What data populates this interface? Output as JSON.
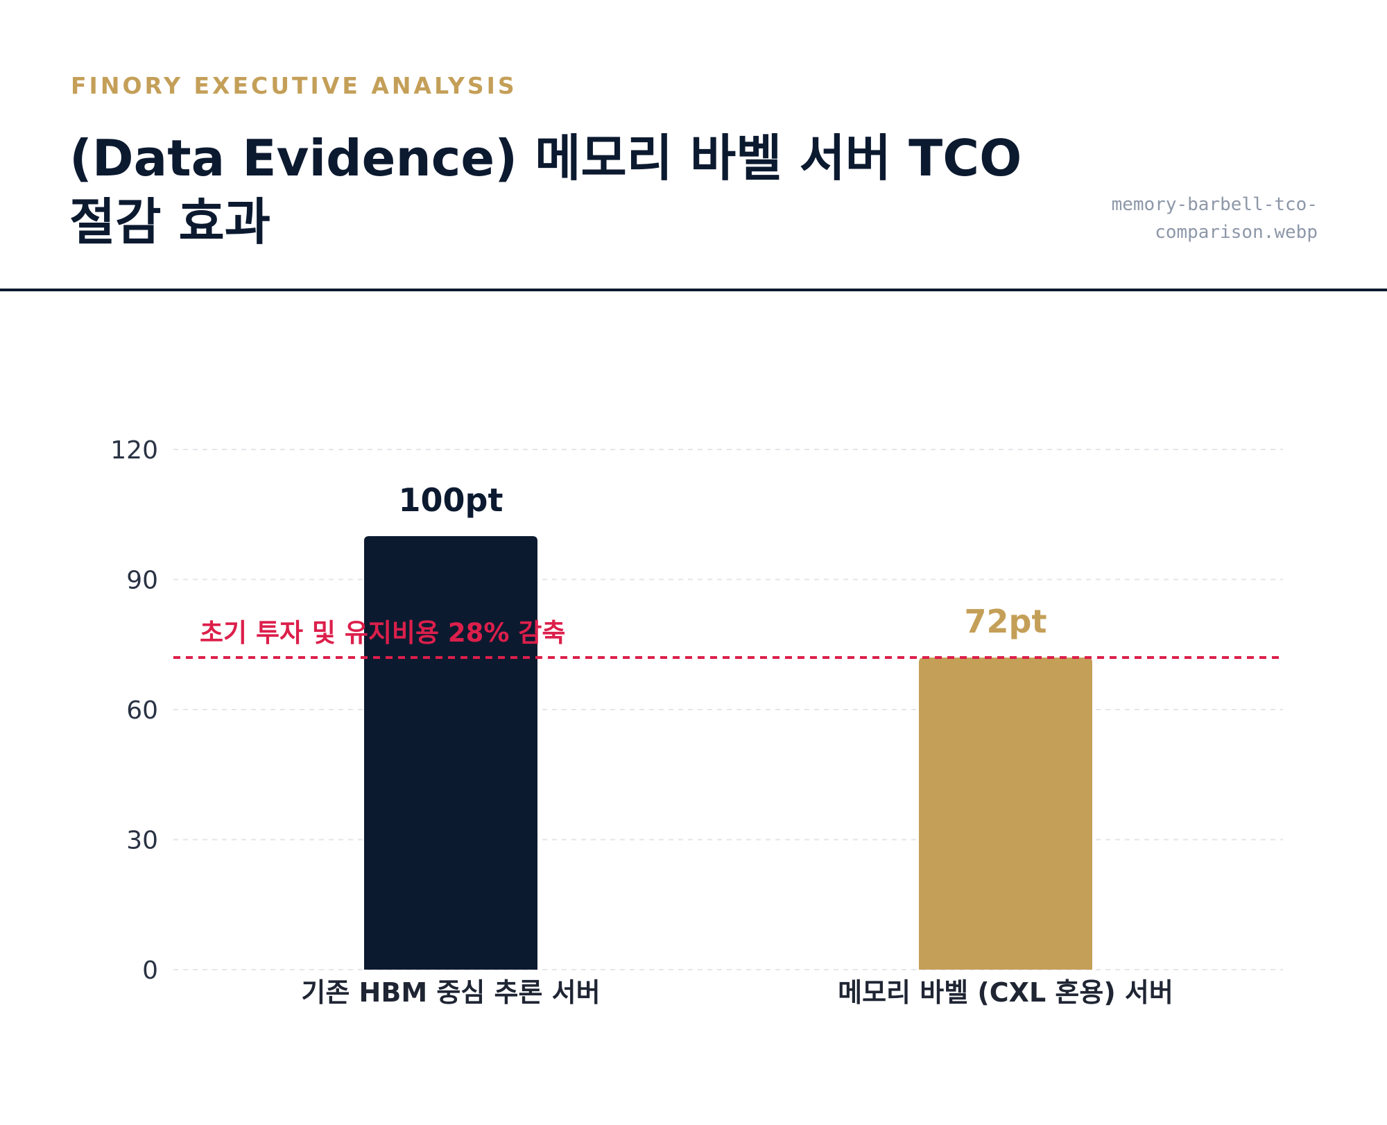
{
  "header": {
    "kicker": "FINORY EXECUTIVE ANALYSIS",
    "title": "(Data Evidence) 메모리 바벨 서버 TCO 절감 효과",
    "filename": "memory-barbell-tco-comparison.webp"
  },
  "chart_data": {
    "type": "bar",
    "categories": [
      "기존 HBM 중심 추론 서버",
      "메모리 바벨 (CXL 혼용) 서버"
    ],
    "values": [
      100,
      72
    ],
    "value_labels": [
      "100pt",
      "72pt"
    ],
    "bar_colors": [
      "#0c1a30",
      "#c49f58"
    ],
    "value_label_colors": [
      "#0c1a30",
      "#c49f58"
    ],
    "ylim": [
      0,
      120
    ],
    "yticks": [
      0,
      30,
      60,
      90,
      120
    ],
    "grid": true,
    "reference_line": {
      "value": 72,
      "label": "초기 투자 및 유지비용 28% 감축",
      "color": "#dc1f4b"
    }
  }
}
